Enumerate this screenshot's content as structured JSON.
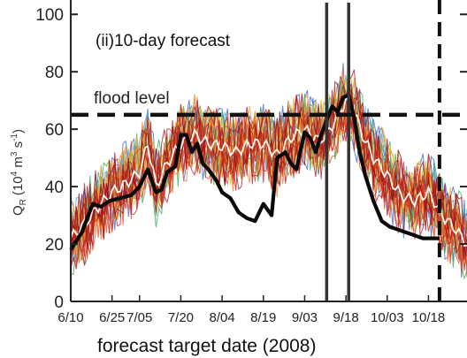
{
  "chart_data": {
    "type": "line",
    "panel_label": "(ii)10-day forecast",
    "xlabel": "forecast target date (2008)",
    "ylabel_main": "Q",
    "ylabel_sub": "R",
    "ylabel_units_open": "(10",
    "ylabel_units_exp1": "4",
    "ylabel_units_mid": " m",
    "ylabel_units_exp2": "3",
    "ylabel_units_mid2": " s",
    "ylabel_units_exp3": "-1",
    "ylabel_units_close": ")",
    "y_ticks": [
      "0",
      "20",
      "40",
      "60",
      "80",
      "100"
    ],
    "y_tick_values": [
      0,
      20,
      40,
      60,
      80,
      100
    ],
    "x_ticks": [
      "6/10",
      "6/25",
      "7/05",
      "7/20",
      "8/04",
      "8/19",
      "9/03",
      "9/18",
      "10/03",
      "10/18"
    ],
    "x_tick_days": [
      0,
      15,
      25,
      40,
      55,
      70,
      85,
      100,
      115,
      130
    ],
    "xlim_days": [
      0,
      144
    ],
    "ylim": [
      0,
      105
    ],
    "flood_level_label": "flood level",
    "flood_level_value": 65,
    "event_markers_days": [
      93,
      101
    ],
    "end_marker_day": 134,
    "observed": {
      "x": [
        0,
        4,
        8,
        11,
        14,
        18,
        22,
        25,
        28,
        31,
        33,
        35,
        38,
        40,
        42,
        44,
        46,
        48,
        50,
        53,
        55,
        58,
        61,
        64,
        67,
        70,
        73,
        75,
        78,
        80,
        82,
        85,
        87,
        89,
        91,
        93,
        95,
        97,
        99,
        101,
        103,
        105,
        107,
        110,
        113,
        116,
        119,
        122,
        125,
        128,
        131,
        134
      ],
      "y": [
        18,
        24,
        34,
        33,
        35,
        36,
        37,
        40,
        46,
        38,
        39,
        45,
        47,
        58,
        58,
        52,
        55,
        48,
        46,
        42,
        38,
        36,
        31,
        29,
        28,
        34,
        30,
        50,
        52,
        48,
        46,
        59,
        57,
        52,
        58,
        63,
        68,
        66,
        71,
        72,
        64,
        52,
        44,
        35,
        28,
        26,
        25,
        24,
        23,
        22,
        22,
        22
      ]
    },
    "ensemble_mean": {
      "x": [
        0,
        5,
        10,
        15,
        20,
        25,
        28,
        31,
        35,
        40,
        45,
        50,
        55,
        60,
        65,
        70,
        75,
        80,
        85,
        90,
        93,
        96,
        100,
        103,
        106,
        110,
        115,
        120,
        125,
        130,
        135,
        140,
        144
      ],
      "y": [
        22,
        27,
        33,
        38,
        41,
        45,
        55,
        40,
        48,
        55,
        58,
        55,
        54,
        52,
        55,
        55,
        51,
        57,
        60,
        56,
        58,
        63,
        70,
        66,
        58,
        50,
        44,
        37,
        35,
        38,
        30,
        25,
        20
      ]
    },
    "ensemble_colors": [
      "#2e5fd1",
      "#35a8e0",
      "#2ea84f",
      "#c9cc2e",
      "#f5a623",
      "#f07a20",
      "#e0401c",
      "#c2121c",
      "#9a0f1c"
    ]
  }
}
